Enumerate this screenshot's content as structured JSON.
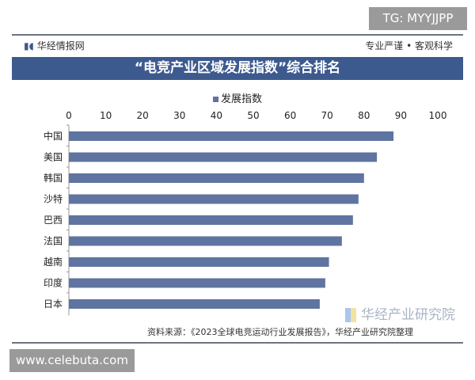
{
  "watermark_tg": "TG: MYYJJPP",
  "watermark_site": "www.celebuta.com",
  "header": {
    "brand": "华经情报网",
    "slogan": "专业严谨 • 客观科学"
  },
  "chart_data": {
    "type": "bar",
    "orientation": "horizontal",
    "title": "“电竞产业区域发展指数”综合排名",
    "categories": [
      "中国",
      "美国",
      "韩国",
      "沙特",
      "巴西",
      "法国",
      "越南",
      "印度",
      "日本"
    ],
    "series": [
      {
        "name": "发展指数",
        "values": [
          88,
          83.5,
          80,
          78.5,
          77,
          74,
          70.5,
          69.5,
          68
        ]
      }
    ],
    "xlim": [
      0,
      100
    ],
    "xticks": [
      0,
      10,
      20,
      30,
      40,
      50,
      60,
      70,
      80,
      90,
      100
    ],
    "legend": "top",
    "grid": false,
    "bar_color": "#5f74a0"
  },
  "footer": {
    "source": "资料来源：《2023全球电竞运动行业发展报告》，华经产业研究院整理",
    "logo_text": "华经产业研究院"
  }
}
